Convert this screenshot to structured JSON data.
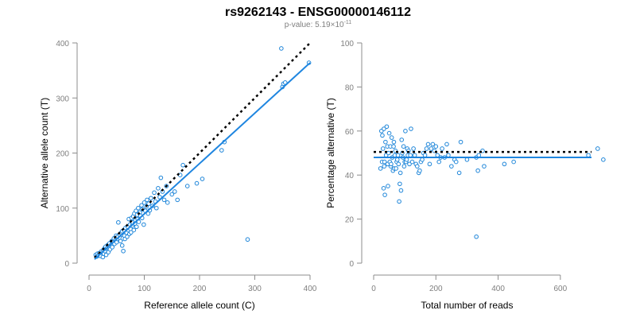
{
  "title": "rs9262143 - ENSG00000146112",
  "subtitle_prefix": "p-value: 5.19×10",
  "subtitle_exp": "-11",
  "chart_data": [
    {
      "type": "scatter",
      "xlabel": "Reference allele count (C)",
      "ylabel": "Alternative allele count (T)",
      "xlim": [
        0,
        400
      ],
      "ylim": [
        0,
        400
      ],
      "xticks": [
        0,
        100,
        200,
        300,
        400
      ],
      "yticks": [
        0,
        100,
        200,
        300,
        400
      ],
      "fit_line": {
        "x": [
          10,
          400
        ],
        "y": [
          7,
          364
        ],
        "color": "#1f86e0"
      },
      "reference_line": {
        "x": [
          10,
          400
        ],
        "y": [
          10,
          400
        ],
        "style": "dotted",
        "color": "#000000"
      },
      "point_color": "#1f86d9",
      "points": [
        [
          12,
          15
        ],
        [
          14,
          12
        ],
        [
          15,
          17
        ],
        [
          17,
          14
        ],
        [
          18,
          18
        ],
        [
          20,
          16
        ],
        [
          21,
          13
        ],
        [
          22,
          21
        ],
        [
          24,
          19
        ],
        [
          25,
          11
        ],
        [
          26,
          24
        ],
        [
          27,
          17
        ],
        [
          28,
          27
        ],
        [
          29,
          22
        ],
        [
          30,
          30
        ],
        [
          31,
          15
        ],
        [
          32,
          26
        ],
        [
          33,
          28
        ],
        [
          34,
          33
        ],
        [
          35,
          20
        ],
        [
          36,
          30
        ],
        [
          37,
          36
        ],
        [
          38,
          25
        ],
        [
          40,
          33
        ],
        [
          41,
          40
        ],
        [
          42,
          29
        ],
        [
          44,
          38
        ],
        [
          45,
          45
        ],
        [
          46,
          35
        ],
        [
          48,
          42
        ],
        [
          49,
          50
        ],
        [
          50,
          38
        ],
        [
          51,
          44
        ],
        [
          52,
          48
        ],
        [
          53,
          74
        ],
        [
          55,
          52
        ],
        [
          56,
          46
        ],
        [
          57,
          40
        ],
        [
          58,
          55
        ],
        [
          60,
          32
        ],
        [
          60,
          58
        ],
        [
          61,
          45
        ],
        [
          62,
          22
        ],
        [
          63,
          60
        ],
        [
          64,
          50
        ],
        [
          65,
          44
        ],
        [
          66,
          64
        ],
        [
          68,
          55
        ],
        [
          69,
          48
        ],
        [
          70,
          66
        ],
        [
          71,
          60
        ],
        [
          72,
          80
        ],
        [
          73,
          53
        ],
        [
          74,
          70
        ],
        [
          75,
          62
        ],
        [
          76,
          56
        ],
        [
          77,
          82
        ],
        [
          78,
          68
        ],
        [
          79,
          74
        ],
        [
          80,
          85
        ],
        [
          81,
          60
        ],
        [
          82,
          90
        ],
        [
          83,
          72
        ],
        [
          84,
          78
        ],
        [
          85,
          95
        ],
        [
          86,
          66
        ],
        [
          87,
          88
        ],
        [
          88,
          80
        ],
        [
          89,
          100
        ],
        [
          90,
          75
        ],
        [
          92,
          92
        ],
        [
          93,
          86
        ],
        [
          95,
          105
        ],
        [
          96,
          82
        ],
        [
          97,
          98
        ],
        [
          99,
          70
        ],
        [
          100,
          110
        ],
        [
          102,
          95
        ],
        [
          104,
          103
        ],
        [
          105,
          115
        ],
        [
          107,
          90
        ],
        [
          108,
          108
        ],
        [
          110,
          96
        ],
        [
          112,
          118
        ],
        [
          115,
          104
        ],
        [
          118,
          128
        ],
        [
          120,
          112
        ],
        [
          122,
          100
        ],
        [
          125,
          136
        ],
        [
          128,
          120
        ],
        [
          130,
          155
        ],
        [
          133,
          130
        ],
        [
          136,
          115
        ],
        [
          140,
          140
        ],
        [
          142,
          110
        ],
        [
          150,
          125
        ],
        [
          155,
          130
        ],
        [
          160,
          115
        ],
        [
          165,
          160
        ],
        [
          170,
          178
        ],
        [
          178,
          140
        ],
        [
          195,
          145
        ],
        [
          205,
          153
        ],
        [
          240,
          205
        ],
        [
          245,
          220
        ],
        [
          287,
          43
        ],
        [
          348,
          390
        ],
        [
          350,
          320
        ],
        [
          352,
          326
        ],
        [
          355,
          328
        ],
        [
          398,
          364
        ]
      ]
    },
    {
      "type": "scatter",
      "xlabel": "Total number of reads",
      "ylabel": "Percentage alternative (T)",
      "xlim": [
        0,
        700
      ],
      "ylim": [
        0,
        100
      ],
      "xticks": [
        0,
        200,
        400,
        600
      ],
      "yticks": [
        0,
        20,
        40,
        60,
        80,
        100
      ],
      "fit_line": {
        "x": [
          0,
          700
        ],
        "y": [
          48,
          48
        ],
        "color": "#1f86e0"
      },
      "reference_line": {
        "x": [
          0,
          700
        ],
        "y": [
          50.5,
          50.5
        ],
        "style": "dotted",
        "color": "#000000"
      },
      "point_color": "#1f86d9",
      "points": [
        [
          22,
          43
        ],
        [
          25,
          60
        ],
        [
          27,
          46
        ],
        [
          28,
          58
        ],
        [
          30,
          52
        ],
        [
          32,
          34
        ],
        [
          33,
          61
        ],
        [
          34,
          44
        ],
        [
          35,
          46
        ],
        [
          36,
          31
        ],
        [
          38,
          55
        ],
        [
          40,
          49
        ],
        [
          42,
          62
        ],
        [
          44,
          53
        ],
        [
          45,
          45
        ],
        [
          46,
          35
        ],
        [
          48,
          50
        ],
        [
          50,
          59
        ],
        [
          52,
          46
        ],
        [
          54,
          53
        ],
        [
          55,
          44
        ],
        [
          56,
          45
        ],
        [
          58,
          57
        ],
        [
          60,
          48
        ],
        [
          62,
          42
        ],
        [
          64,
          53
        ],
        [
          65,
          55
        ],
        [
          66,
          43
        ],
        [
          68,
          49
        ],
        [
          70,
          51
        ],
        [
          72,
          43
        ],
        [
          74,
          46
        ],
        [
          76,
          47
        ],
        [
          78,
          49
        ],
        [
          80,
          45
        ],
        [
          82,
          28
        ],
        [
          84,
          36
        ],
        [
          86,
          41
        ],
        [
          88,
          33
        ],
        [
          90,
          56
        ],
        [
          92,
          50
        ],
        [
          94,
          48
        ],
        [
          96,
          53
        ],
        [
          98,
          44
        ],
        [
          100,
          46
        ],
        [
          102,
          60
        ],
        [
          104,
          46
        ],
        [
          106,
          47
        ],
        [
          108,
          52
        ],
        [
          110,
          49
        ],
        [
          112,
          51
        ],
        [
          115,
          45
        ],
        [
          118,
          49
        ],
        [
          120,
          61
        ],
        [
          124,
          46
        ],
        [
          128,
          52
        ],
        [
          132,
          49
        ],
        [
          136,
          45
        ],
        [
          140,
          44
        ],
        [
          145,
          41
        ],
        [
          148,
          42
        ],
        [
          152,
          46
        ],
        [
          156,
          47
        ],
        [
          160,
          50
        ],
        [
          165,
          49
        ],
        [
          170,
          52
        ],
        [
          175,
          54
        ],
        [
          180,
          45
        ],
        [
          185,
          52
        ],
        [
          190,
          54
        ],
        [
          195,
          51
        ],
        [
          200,
          53
        ],
        [
          205,
          49
        ],
        [
          210,
          46
        ],
        [
          215,
          48
        ],
        [
          220,
          52
        ],
        [
          228,
          48
        ],
        [
          235,
          54
        ],
        [
          240,
          49
        ],
        [
          250,
          44
        ],
        [
          260,
          47
        ],
        [
          265,
          46
        ],
        [
          275,
          41
        ],
        [
          280,
          55
        ],
        [
          300,
          47
        ],
        [
          330,
          48
        ],
        [
          335,
          42
        ],
        [
          338,
          49
        ],
        [
          350,
          51
        ],
        [
          355,
          44
        ],
        [
          420,
          45
        ],
        [
          450,
          46
        ],
        [
          330,
          12
        ],
        [
          690,
          49
        ],
        [
          720,
          52
        ],
        [
          738,
          47
        ]
      ]
    }
  ]
}
